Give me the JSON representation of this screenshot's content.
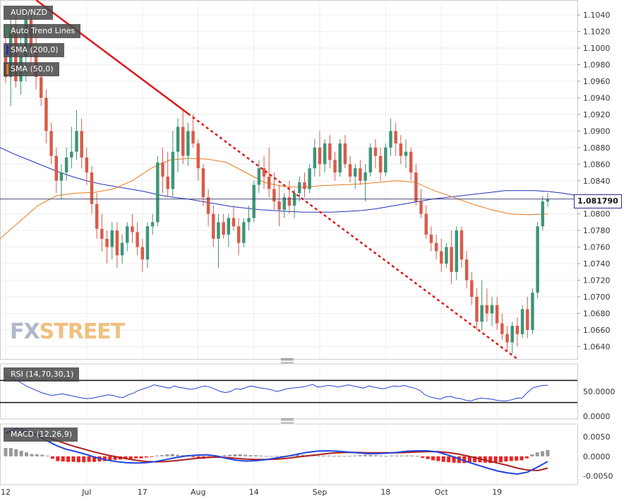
{
  "instrument": "AUD/NZD",
  "legend": {
    "trend": {
      "label": "Auto Trend Lines",
      "color": "#2e8b57"
    },
    "sma200": {
      "label": "SMA (200,0)",
      "color": "#2233bb"
    },
    "sma50": {
      "label": "SMA (50,0)",
      "color": "#e8791e"
    }
  },
  "price_tag": "1.081790",
  "watermark": {
    "fx": "FX",
    "street": "STREET"
  },
  "colors": {
    "up": "#3d9478",
    "down": "#d95b49",
    "trend": "#e01818",
    "sma200": "#2233bb",
    "sma50": "#e8791e",
    "rsi": "#2244cc",
    "macd": "#2244dd",
    "signal": "#b0201c",
    "hist_neg": "#ee2222",
    "hist_pos": "#999999"
  },
  "chart_data": [
    {
      "type": "candlestick",
      "title": "AUD/NZD",
      "y_ticks": [
        "1.1040",
        "1.1020",
        "1.1000",
        "1.0980",
        "1.0960",
        "1.0940",
        "1.0920",
        "1.0900",
        "1.0880",
        "1.0860",
        "1.0840",
        "1.0800",
        "1.0780",
        "1.0760",
        "1.0740",
        "1.0720",
        "1.0700",
        "1.0680",
        "1.0660",
        "1.0640"
      ],
      "ylim": [
        1.0625,
        1.1058
      ],
      "x_ticks": [
        "12",
        "Jul",
        "17",
        "Aug",
        "14",
        "Sep",
        "18",
        "Oct",
        "19"
      ],
      "last_price": 1.08179,
      "ohlc": [
        [
          1.099,
          1.1012,
          1.0958,
          1.0965
        ],
        [
          1.0965,
          1.104,
          1.093,
          1.102
        ],
        [
          1.102,
          1.1046,
          1.0952,
          1.096
        ],
        [
          1.096,
          1.102,
          1.0944,
          1.099
        ],
        [
          1.099,
          1.105,
          1.096,
          1.1035
        ],
        [
          1.1035,
          1.104,
          1.097,
          1.1
        ],
        [
          1.1,
          1.102,
          1.095,
          1.0965
        ],
        [
          1.0965,
          1.097,
          1.093,
          1.094
        ],
        [
          1.094,
          1.095,
          1.0885,
          1.09
        ],
        [
          1.09,
          1.091,
          1.086,
          1.087
        ],
        [
          1.087,
          1.088,
          1.0825,
          1.084
        ],
        [
          1.084,
          1.086,
          1.0818,
          1.085
        ],
        [
          1.085,
          1.088,
          1.084,
          1.0868
        ],
        [
          1.0868,
          1.0905,
          1.0855,
          1.0875
        ],
        [
          1.0875,
          1.0925,
          1.0865,
          1.09
        ],
        [
          1.09,
          1.0915,
          1.0855,
          1.0868
        ],
        [
          1.0868,
          1.088,
          1.0835,
          1.085
        ],
        [
          1.085,
          1.0858,
          1.08,
          1.0812
        ],
        [
          1.0812,
          1.0825,
          1.077,
          1.0782
        ],
        [
          1.0782,
          1.08,
          1.0755,
          1.077
        ],
        [
          1.077,
          1.078,
          1.074,
          1.076
        ],
        [
          1.076,
          1.079,
          1.0745,
          1.078
        ],
        [
          1.078,
          1.079,
          1.0735,
          1.075
        ],
        [
          1.075,
          1.0775,
          1.074,
          1.0765
        ],
        [
          1.0765,
          1.079,
          1.0755,
          1.0785
        ],
        [
          1.0785,
          1.08,
          1.0765,
          1.0778
        ],
        [
          1.0778,
          1.079,
          1.075,
          1.076
        ],
        [
          1.076,
          1.077,
          1.073,
          1.0745
        ],
        [
          1.0745,
          1.079,
          1.0735,
          1.0785
        ],
        [
          1.0785,
          1.08,
          1.0775,
          1.079
        ],
        [
          1.079,
          1.087,
          1.0785,
          1.0862
        ],
        [
          1.0862,
          1.088,
          1.0825,
          1.0845
        ],
        [
          1.0845,
          1.0875,
          1.082,
          1.083
        ],
        [
          1.083,
          1.09,
          1.082,
          1.0875
        ],
        [
          1.0875,
          1.0915,
          1.085,
          1.0905
        ],
        [
          1.0905,
          1.0925,
          1.086,
          1.087
        ],
        [
          1.087,
          1.091,
          1.0858,
          1.09
        ],
        [
          1.09,
          1.092,
          1.088,
          1.0885
        ],
        [
          1.0885,
          1.089,
          1.084,
          1.0855
        ],
        [
          1.0855,
          1.086,
          1.081,
          1.082
        ],
        [
          1.082,
          1.083,
          1.0785,
          1.08
        ],
        [
          1.08,
          1.081,
          1.076,
          1.077
        ],
        [
          1.077,
          1.08,
          1.0735,
          1.079
        ],
        [
          1.079,
          1.08,
          1.077,
          1.0775
        ],
        [
          1.0775,
          1.08,
          1.076,
          1.0795
        ],
        [
          1.0795,
          1.081,
          1.078,
          1.0785
        ],
        [
          1.0785,
          1.0795,
          1.075,
          1.0765
        ],
        [
          1.0765,
          1.0795,
          1.076,
          1.079
        ],
        [
          1.079,
          1.081,
          1.078,
          1.0795
        ],
        [
          1.0795,
          1.084,
          1.079,
          1.0835
        ],
        [
          1.0835,
          1.0865,
          1.0825,
          1.0855
        ],
        [
          1.0855,
          1.087,
          1.083,
          1.0845
        ],
        [
          1.0845,
          1.088,
          1.082,
          1.083
        ],
        [
          1.083,
          1.085,
          1.0805,
          1.0815
        ],
        [
          1.0815,
          1.0835,
          1.0785,
          1.0805
        ],
        [
          1.0805,
          1.0825,
          1.0795,
          1.082
        ],
        [
          1.082,
          1.084,
          1.08,
          1.081
        ],
        [
          1.081,
          1.083,
          1.0795,
          1.0825
        ],
        [
          1.0825,
          1.0845,
          1.0815,
          1.0838
        ],
        [
          1.0838,
          1.085,
          1.082,
          1.083
        ],
        [
          1.083,
          1.086,
          1.0825,
          1.0855
        ],
        [
          1.0855,
          1.089,
          1.0845,
          1.088
        ],
        [
          1.088,
          1.09,
          1.0845,
          1.086
        ],
        [
          1.086,
          1.089,
          1.085,
          1.0885
        ],
        [
          1.0885,
          1.0895,
          1.0855,
          1.0865
        ],
        [
          1.0865,
          1.0875,
          1.084,
          1.085
        ],
        [
          1.085,
          1.089,
          1.0845,
          1.0885
        ],
        [
          1.0885,
          1.0895,
          1.0855,
          1.086
        ],
        [
          1.086,
          1.087,
          1.0838,
          1.0845
        ],
        [
          1.0845,
          1.086,
          1.083,
          1.0855
        ],
        [
          1.0855,
          1.0865,
          1.0835,
          1.084
        ],
        [
          1.084,
          1.086,
          1.0815,
          1.085
        ],
        [
          1.085,
          1.0885,
          1.0845,
          1.088
        ],
        [
          1.088,
          1.089,
          1.0855,
          1.087
        ],
        [
          1.087,
          1.088,
          1.084,
          1.085
        ],
        [
          1.085,
          1.0885,
          1.0845,
          1.088
        ],
        [
          1.088,
          1.0915,
          1.087,
          1.09
        ],
        [
          1.09,
          1.091,
          1.087,
          1.0885
        ],
        [
          1.0885,
          1.0895,
          1.086,
          1.087
        ],
        [
          1.087,
          1.089,
          1.0855,
          1.0875
        ],
        [
          1.0875,
          1.088,
          1.084,
          1.085
        ],
        [
          1.085,
          1.086,
          1.081,
          1.0815
        ],
        [
          1.0815,
          1.083,
          1.0795,
          1.08
        ],
        [
          1.08,
          1.081,
          1.077,
          1.0775
        ],
        [
          1.0775,
          1.0785,
          1.0755,
          1.0765
        ],
        [
          1.0765,
          1.0775,
          1.0745,
          1.0755
        ],
        [
          1.0755,
          1.077,
          1.073,
          1.074
        ],
        [
          1.074,
          1.0765,
          1.0735,
          1.076
        ],
        [
          1.076,
          1.078,
          1.0715,
          1.073
        ],
        [
          1.073,
          1.0785,
          1.072,
          1.078
        ],
        [
          1.078,
          1.0785,
          1.0735,
          1.0745
        ],
        [
          1.0745,
          1.0755,
          1.071,
          1.072
        ],
        [
          1.072,
          1.073,
          1.069,
          1.07
        ],
        [
          1.07,
          1.071,
          1.066,
          1.067
        ],
        [
          1.067,
          1.072,
          1.066,
          1.069
        ],
        [
          1.069,
          1.071,
          1.067,
          1.068
        ],
        [
          1.068,
          1.07,
          1.0665,
          1.069
        ],
        [
          1.069,
          1.07,
          1.066,
          1.0668
        ],
        [
          1.0668,
          1.068,
          1.0648,
          1.0655
        ],
        [
          1.0655,
          1.0665,
          1.0635,
          1.0645
        ],
        [
          1.0645,
          1.067,
          1.0632,
          1.0665
        ],
        [
          1.0665,
          1.0675,
          1.064,
          1.0655
        ],
        [
          1.0655,
          1.069,
          1.065,
          1.0685
        ],
        [
          1.0685,
          1.07,
          1.065,
          1.066
        ],
        [
          1.066,
          1.071,
          1.0655,
          1.0705
        ],
        [
          1.0705,
          1.079,
          1.0698,
          1.0785
        ],
        [
          1.0785,
          1.0822,
          1.078,
          1.0815
        ],
        [
          1.0815,
          1.0825,
          1.0808,
          1.0818
        ]
      ],
      "sma200": [
        1.088,
        1.0872,
        1.0865,
        1.0858,
        1.0851,
        1.0845,
        1.084,
        1.0836,
        1.0833,
        1.083,
        1.0827,
        1.0823,
        1.082,
        1.0818,
        1.0815,
        1.0812,
        1.0809,
        1.0807,
        1.0805,
        1.0804,
        1.0803,
        1.0802,
        1.0802,
        1.0802,
        1.0803,
        1.0804,
        1.0806,
        1.0809,
        1.0812,
        1.0815,
        1.0818,
        1.082,
        1.0822,
        1.0824,
        1.0826,
        1.0828,
        1.0828,
        1.0828,
        1.0827,
        1.0825,
        1.0822
      ],
      "sma50": [
        1.077,
        1.079,
        1.081,
        1.0822,
        1.0825,
        1.0826,
        1.083,
        1.084,
        1.0855,
        1.0865,
        1.0867,
        1.0866,
        1.0862,
        1.085,
        1.0838,
        1.0833,
        1.0832,
        1.0834,
        1.0835,
        1.0836,
        1.0838,
        1.084,
        1.0838,
        1.0828,
        1.082,
        1.0812,
        1.0805,
        1.08,
        1.0799,
        1.08
      ]
    },
    {
      "type": "line",
      "title": "RSI (14,70,30,1)",
      "y_ticks": [
        "50.0000",
        "0.0000"
      ],
      "levels": [
        70,
        30
      ],
      "ylim": [
        0,
        100
      ],
      "values": [
        78,
        75,
        71,
        66,
        60,
        56,
        52,
        48,
        45,
        43,
        44,
        46,
        44,
        42,
        40,
        38,
        37,
        38,
        40,
        42,
        44,
        43,
        40,
        39,
        44,
        47,
        52,
        55,
        58,
        62,
        60,
        58,
        56,
        60,
        57,
        56,
        54,
        55,
        58,
        60,
        58,
        54,
        50,
        48,
        50,
        55,
        54,
        57,
        60,
        58,
        56,
        55,
        53,
        50,
        52,
        55,
        56,
        57,
        58,
        60,
        63,
        58,
        59,
        61,
        60,
        58,
        60,
        62,
        60,
        58,
        56,
        60,
        58,
        56,
        55,
        58,
        60,
        59,
        61,
        58,
        56,
        52,
        44,
        40,
        38,
        36,
        40,
        41,
        38,
        37,
        34,
        33,
        36,
        38,
        37,
        36,
        34,
        33,
        33,
        35,
        38,
        38,
        48,
        56,
        59,
        61,
        61
      ]
    },
    {
      "type": "line",
      "title": "MACD (12,26,9)",
      "y_ticks": [
        "0.0050",
        "0.0000",
        "-0.0050"
      ],
      "ylim": [
        -0.0072,
        0.0082
      ],
      "macd": [
        0.0058,
        0.007,
        0.0066,
        0.0055,
        0.0041,
        0.0028,
        0.0018,
        0.0012,
        0.0005,
        -0.0003,
        -0.0009,
        -0.0013,
        -0.0016,
        -0.0017,
        -0.0016,
        -0.0013,
        -0.0008,
        -0.0003,
        0.0001,
        0.0003,
        0.0004,
        0.0001,
        -0.0005,
        -0.001,
        -0.0012,
        -0.0011,
        -0.0008,
        -0.0004,
        0.0,
        0.0005,
        0.001,
        0.0013,
        0.0014,
        0.0013,
        0.0011,
        0.0009,
        0.0007,
        0.0007,
        0.0008,
        0.001,
        0.0013,
        0.0014,
        0.0014,
        0.0011,
        0.0004,
        -0.0005,
        -0.0014,
        -0.0022,
        -0.003,
        -0.0037,
        -0.0042,
        -0.0045,
        -0.004,
        -0.0027,
        -0.0013
      ],
      "signal": [
        0.006,
        0.0063,
        0.0061,
        0.0056,
        0.0049,
        0.0041,
        0.0032,
        0.0024,
        0.0017,
        0.001,
        0.0004,
        -0.0001,
        -0.0006,
        -0.001,
        -0.0013,
        -0.0014,
        -0.0013,
        -0.0011,
        -0.0008,
        -0.0005,
        -0.0003,
        -0.0002,
        -0.0003,
        -0.0005,
        -0.0007,
        -0.0008,
        -0.0008,
        -0.0007,
        -0.0005,
        -0.0002,
        0.0001,
        0.0004,
        0.0007,
        0.0009,
        0.001,
        0.001,
        0.0009,
        0.0009,
        0.0009,
        0.0009,
        0.001,
        0.0011,
        0.0012,
        0.0012,
        0.001,
        0.0006,
        0.0001,
        -0.0005,
        -0.0011,
        -0.0017,
        -0.0023,
        -0.003,
        -0.0035,
        -0.0036,
        -0.003
      ],
      "histogram": [
        0.0021,
        0.0021,
        0.0018,
        0.0014,
        0.001,
        0.0006,
        0.0005,
        0.0004,
        0.0002,
        -0.0006,
        -0.0012,
        -0.0013,
        -0.0014,
        -0.0014,
        -0.0015,
        -0.0015,
        -0.0014,
        -0.0014,
        -0.0013,
        -0.0012,
        -0.001,
        -0.0009,
        -0.0008,
        -0.0007,
        -0.0006,
        -0.0005,
        -0.0005,
        -0.0003,
        -0.0001,
        0.0002,
        0.0003,
        0.0005,
        0.0006,
        0.0004,
        0.0003,
        0.0003,
        -0.0002,
        -0.0004,
        -0.0006,
        -0.0004,
        -0.0002,
        0.0001,
        0.0003,
        0.0004,
        0.0005,
        0.0005,
        0.0004,
        0.0003,
        0.0003,
        0.0002,
        0.0001,
        0.0001,
        0.0001,
        0.0001,
        0.0002,
        0.0003,
        0.0004,
        0.0004,
        0.0003,
        0.0003,
        0.0002,
        0.0002,
        0.0002,
        0.0001,
        0.0001,
        0.0001,
        0.0001,
        0.0002,
        0.0003,
        0.0004,
        0.0004,
        0.0003,
        0.0002,
        0.0001,
        0.0002,
        0.0002,
        0.0002,
        0.0002,
        0.0002,
        0.0001,
        -0.0004,
        -0.0007,
        -0.001,
        -0.0012,
        -0.0014,
        -0.0015,
        -0.0016,
        -0.0017,
        -0.0017,
        -0.0016,
        -0.0015,
        -0.0015,
        -0.0016,
        -0.0017,
        -0.0016,
        -0.0015,
        -0.0013,
        -0.0012,
        -0.0011,
        -0.001,
        -0.0005,
        0.0005,
        0.001,
        0.0013,
        0.0016
      ]
    }
  ]
}
